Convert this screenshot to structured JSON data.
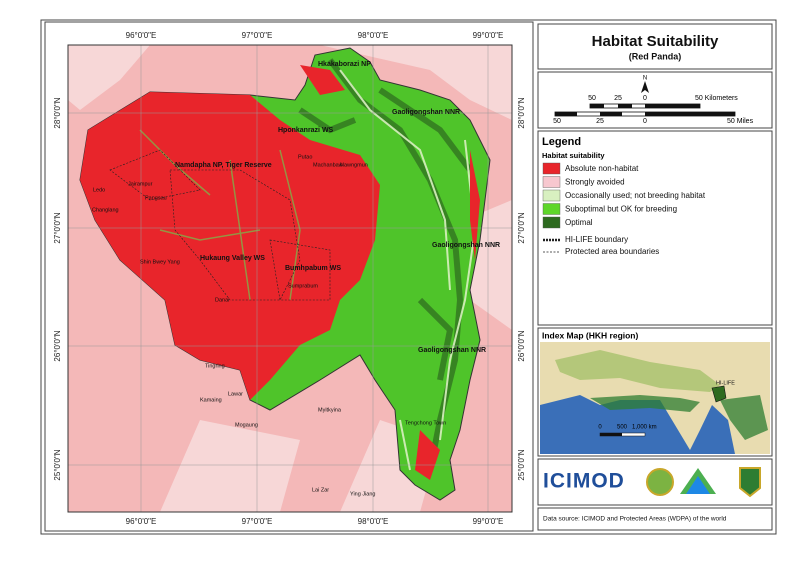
{
  "header": {
    "title": "Habitat Suitability",
    "subtitle": "(Red Panda)"
  },
  "map": {
    "longitudes": [
      "96°0'0\"E",
      "97°0'0\"E",
      "98°0'0\"E",
      "99°0'0\"E"
    ],
    "latitudes": [
      "28°0'0\"N",
      "27°0'0\"N",
      "26°0'0\"N",
      "25°0'0\"N"
    ],
    "protected_areas": [
      "Hkakaborazi NP",
      "Hponkanrazi WS",
      "Gaoligongshan NNR",
      "Namdapha NP, Tiger Reserve",
      "Hukaung Valley WS",
      "Bumhpabum WS",
      "Gaoligongshan NNR",
      "Gaoligongshan NNR"
    ],
    "places": [
      "Ledo",
      "Jairampur",
      "Changlang",
      "Pangsau",
      "Putao",
      "Machanbaw",
      "Shin Bwey Yang",
      "Danai",
      "Sumprabum",
      "Tingring",
      "Kamaing",
      "Lawar",
      "Mogaung",
      "Myitkyina",
      "Lai Zar",
      "Ying Jiang",
      "Tengchong Town",
      "Nawngmun"
    ]
  },
  "scale_bar": {
    "north": "N",
    "km_labels": [
      "50",
      "25",
      "0",
      "50 Kilometers"
    ],
    "mile_labels": [
      "50",
      "25",
      "0",
      "50 Miles"
    ]
  },
  "legend": {
    "title": "Legend",
    "subtitle": "Habitat suitability",
    "classes": [
      {
        "label": "Absolute non-habitat",
        "color": "#e8252b"
      },
      {
        "label": "Strongly avoided",
        "color": "#f7c7cf"
      },
      {
        "label": "Occasionally used; not breeding habitat",
        "color": "#d8f0c0"
      },
      {
        "label": "Suboptimal but OK for breeding",
        "color": "#5ed62a"
      },
      {
        "label": "Optimal",
        "color": "#2d6a1f"
      }
    ],
    "lines": [
      "HI-LIFE boundary",
      "Protected area boundaries"
    ]
  },
  "index_map": {
    "title": "Index Map (HKH region)",
    "label": "HI-LIFE",
    "scale_labels": [
      "0",
      "500",
      "1,000 km"
    ]
  },
  "logo": {
    "text": "ICIMOD"
  },
  "source": "Data source: ICIMOD and Protected Areas (WDPA) of the world"
}
